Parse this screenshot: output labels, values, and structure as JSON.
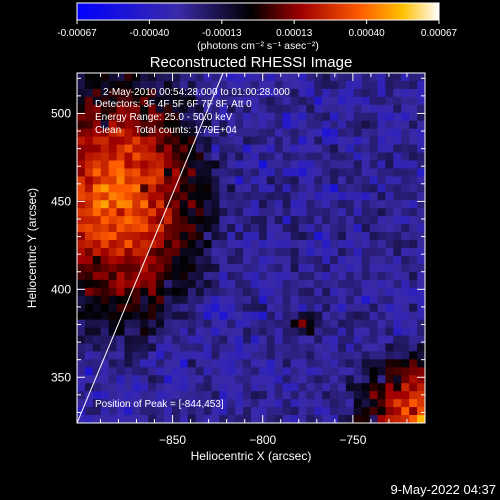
{
  "colorbar": {
    "ticks": [
      "-0.00067",
      "-0.00040",
      "-0.00013",
      "0.00013",
      "0.00040",
      "0.00067"
    ],
    "unit_label": "(photons cm⁻² s⁻¹ asec⁻²)"
  },
  "annotations": {
    "line1": "2-May-2010 00:54:28.000 to 01:00:28.000",
    "line2": "Detectors: 3F 4F 5F 6F 7F 8F, Att 0",
    "line3": "Energy Range: 25.0 - 50.0 keV",
    "line4": "Clean     Total counts: 1.79E+04",
    "peak": "Position of Peak = [-844,453]"
  },
  "footer": {
    "timestamp": "9-May-2022 04:37"
  },
  "chart_data": {
    "type": "heatmap",
    "title": "Reconstructed RHESSI Image",
    "xlabel": "Heliocentric X (arcsec)",
    "ylabel": "Heliocentric Y (arcsec)",
    "xlim": [
      -903,
      -710
    ],
    "ylim": [
      324,
      523
    ],
    "x_ticks": [
      -850,
      -800,
      -750
    ],
    "y_ticks": [
      350,
      400,
      450,
      500
    ],
    "colorbar_range": [
      -0.00067,
      0.00067
    ],
    "peak_position": [
      -844,
      453
    ],
    "limb_line": {
      "x": [
        -903,
        -822
      ],
      "y": [
        324,
        523
      ]
    }
  }
}
